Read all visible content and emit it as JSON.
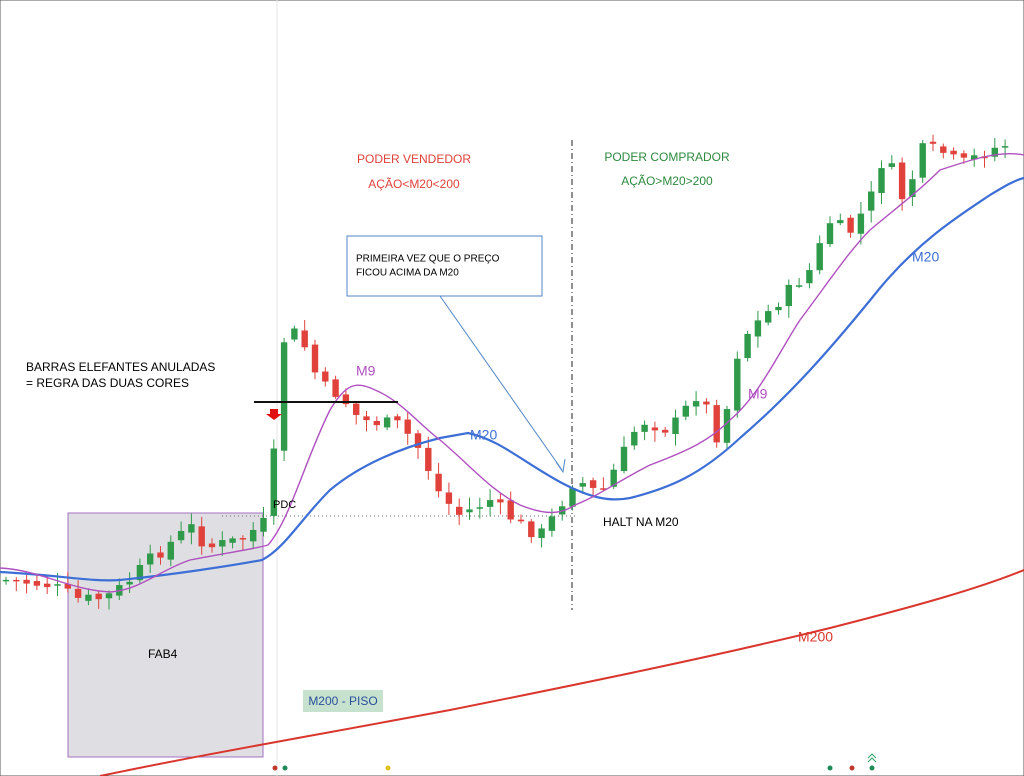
{
  "annotations": {
    "sell_title": "PODER VENDEDOR",
    "sell_rule": "AÇÃO<M20<200",
    "buy_title": "PODER COMPRADOR",
    "buy_rule": "AÇÃO>M20>200",
    "callout": [
      "PRIMEIRA VEZ QUE O PREÇO",
      "FICOU ACIMA DA M20"
    ],
    "elephant": [
      "BARRAS ELEFANTES ANULADAS",
      "= REGRA DAS DUAS CORES"
    ],
    "m9": [
      "M9",
      "M9"
    ],
    "m20": [
      "M20",
      "M20"
    ],
    "m200": "M200",
    "pdc": "PDC",
    "halt": "HALT NA M20",
    "fab4": "FAB4",
    "floor": "M200 - PISO"
  }
}
